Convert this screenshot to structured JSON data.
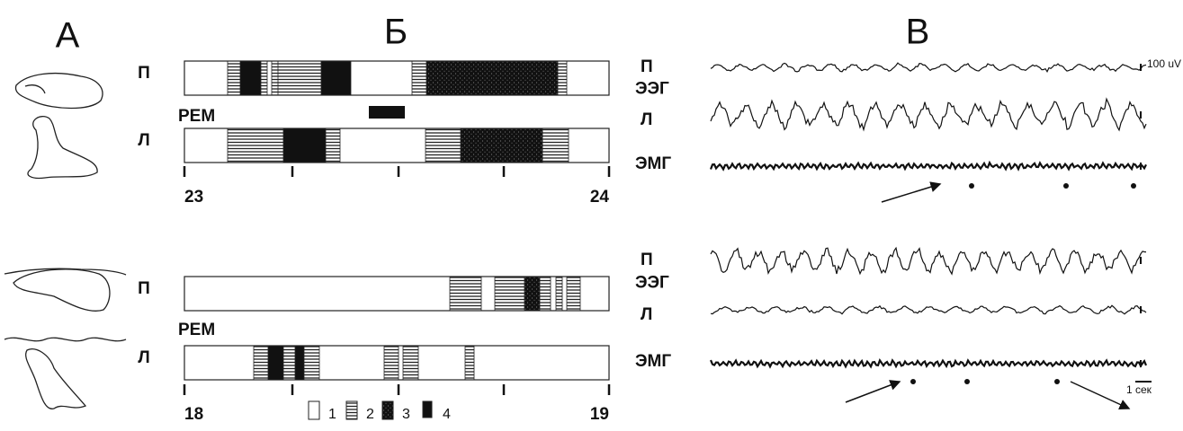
{
  "panel_labels": [
    "А",
    "Б",
    "В"
  ],
  "hypnograms": [
    {
      "rows": [
        "П",
        "Л"
      ],
      "rem": "РЕМ",
      "start": "23",
      "end": "24"
    },
    {
      "rows": [
        "П",
        "Л"
      ],
      "rem": "РЕМ",
      "start": "18",
      "end": "19"
    }
  ],
  "legend": [
    "1",
    "2",
    "3",
    "4"
  ],
  "recordings": [
    {
      "eeg": "ЭЭГ",
      "channels": [
        "П",
        "Л"
      ],
      "emg": "ЭМГ"
    },
    {
      "eeg": "ЭЭГ",
      "channels": [
        "П",
        "Л"
      ],
      "emg": "ЭМГ"
    }
  ],
  "scale": {
    "amplitude": "100 uV",
    "time": "1 сек"
  }
}
